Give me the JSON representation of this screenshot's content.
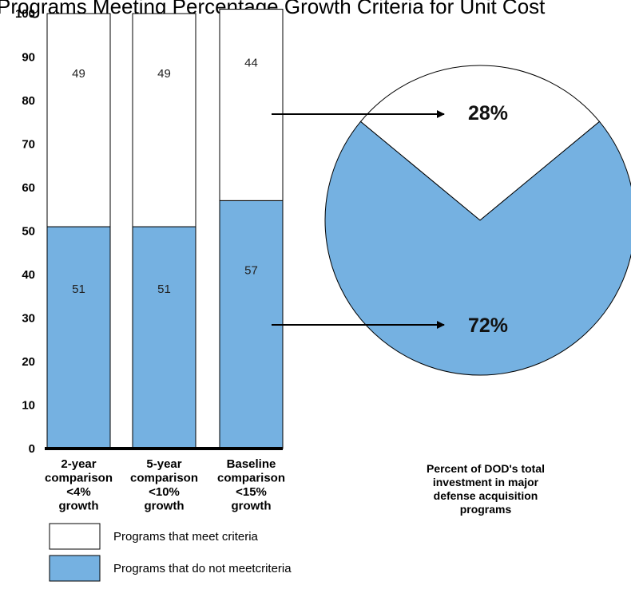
{
  "title": "Programs Meeting Percentage Growth Criteria for Unit Cost",
  "chart_data": [
    {
      "type": "bar",
      "stacked": true,
      "ylim": [
        0,
        100
      ],
      "yticks": [
        0,
        10,
        20,
        30,
        40,
        50,
        60,
        70,
        80,
        90,
        100
      ],
      "categories": [
        [
          "2-year",
          "comparison",
          "<4%",
          "growth"
        ],
        [
          "5-year",
          "comparison",
          "<10%",
          "growth"
        ],
        [
          "Baseline",
          "comparison",
          "<15%",
          "growth"
        ]
      ],
      "series": [
        {
          "name": "Programs that do not meetcriteria",
          "values": [
            51,
            51,
            57
          ],
          "color": "#75b1e1"
        },
        {
          "name": "Programs that meet criteria",
          "values": [
            49,
            49,
            44
          ],
          "color": "#ffffff"
        }
      ],
      "legend": "bottom-left"
    },
    {
      "type": "pie",
      "labels": [
        "28%",
        "72%"
      ],
      "values": [
        28,
        72
      ],
      "colors": [
        "#ffffff",
        "#75b1e1"
      ],
      "caption": [
        "Percent of DOD's total",
        "investment in major",
        "defense acquisition",
        "programs"
      ]
    }
  ],
  "legend": [
    {
      "label": "Programs that meet criteria",
      "color": "#ffffff"
    },
    {
      "label": "Programs that do not meetcriteria",
      "color": "#75b1e1"
    }
  ]
}
